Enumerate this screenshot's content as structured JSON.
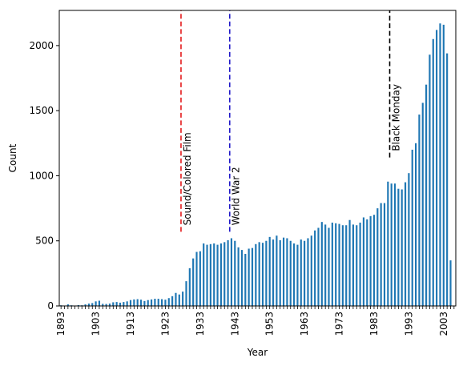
{
  "chart_data": {
    "type": "bar",
    "xlabel": "Year",
    "ylabel": "Count",
    "ylim": [
      0,
      2270
    ],
    "y_ticks": [
      0,
      500,
      1000,
      1500,
      2000
    ],
    "x_tick_labels": [
      "1893",
      "1903",
      "1913",
      "1923",
      "1933",
      "1943",
      "1953",
      "1963",
      "1973",
      "1983",
      "1993",
      "2003"
    ],
    "x": [
      1893,
      1894,
      1895,
      1896,
      1897,
      1898,
      1899,
      1900,
      1901,
      1902,
      1903,
      1904,
      1905,
      1906,
      1907,
      1908,
      1909,
      1910,
      1911,
      1912,
      1913,
      1914,
      1915,
      1916,
      1917,
      1918,
      1919,
      1920,
      1921,
      1922,
      1923,
      1924,
      1925,
      1926,
      1927,
      1928,
      1929,
      1930,
      1931,
      1932,
      1933,
      1934,
      1935,
      1936,
      1937,
      1938,
      1939,
      1940,
      1941,
      1942,
      1943,
      1944,
      1945,
      1946,
      1947,
      1948,
      1949,
      1950,
      1951,
      1952,
      1953,
      1954,
      1955,
      1956,
      1957,
      1958,
      1959,
      1960,
      1961,
      1962,
      1963,
      1964,
      1965,
      1966,
      1967,
      1968,
      1969,
      1970,
      1971,
      1972,
      1973,
      1974,
      1975,
      1976,
      1977,
      1978,
      1979,
      1980,
      1981,
      1982,
      1983,
      1984,
      1985,
      1986,
      1987,
      1988,
      1989,
      1990,
      1991,
      1992,
      1993,
      1994,
      1995,
      1996,
      1997,
      1998,
      1999,
      2000,
      2001,
      2002,
      2003,
      2004,
      2005,
      2006
    ],
    "values": [
      5,
      3,
      12,
      5,
      3,
      6,
      5,
      12,
      18,
      22,
      35,
      40,
      16,
      15,
      18,
      28,
      30,
      25,
      30,
      35,
      45,
      50,
      52,
      48,
      38,
      45,
      50,
      55,
      55,
      52,
      48,
      60,
      75,
      100,
      88,
      110,
      190,
      290,
      365,
      415,
      420,
      480,
      470,
      475,
      480,
      470,
      480,
      490,
      505,
      520,
      500,
      450,
      430,
      400,
      440,
      445,
      475,
      490,
      485,
      500,
      530,
      510,
      540,
      505,
      525,
      520,
      500,
      480,
      470,
      510,
      500,
      520,
      540,
      580,
      600,
      645,
      625,
      600,
      640,
      635,
      630,
      620,
      620,
      660,
      625,
      620,
      640,
      680,
      665,
      690,
      700,
      750,
      790,
      790,
      955,
      940,
      940,
      900,
      895,
      950,
      1020,
      1200,
      1250,
      1470,
      1560,
      1700,
      1930,
      2050,
      2120,
      2170,
      2160,
      1940,
      350,
      0
    ],
    "annotations": [
      {
        "x": 1927.5,
        "label": "Sound/Colored Film",
        "color": "#e41a1c",
        "y_from": 570,
        "y_to": 2270
      },
      {
        "x": 1941.5,
        "label": "World War 2",
        "color": "#1f17c7",
        "y_from": 570,
        "y_to": 2270
      },
      {
        "x": 1987.5,
        "label": "Black Monday",
        "color": "#000000",
        "y_from": 1140,
        "y_to": 2270
      }
    ],
    "bar_color": "#1f77b4",
    "legend": "none",
    "grid": false
  }
}
